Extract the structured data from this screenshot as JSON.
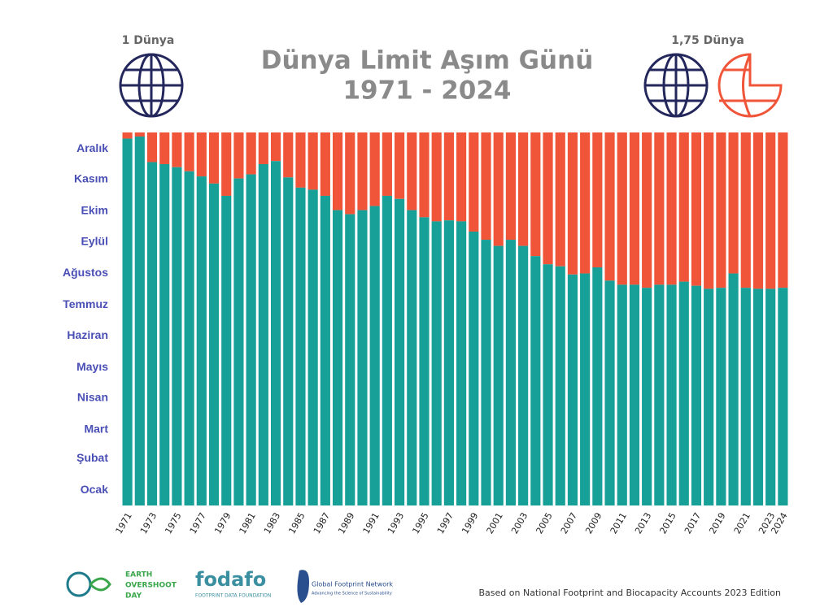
{
  "chart_data": {
    "type": "bar",
    "title": "Dünya Limit Aşım Günü",
    "subtitle": "1971 - 2024",
    "left_label": "1 Dünya",
    "right_label": "1,75 Dünya",
    "source": "Based on National Footprint and Biocapacity Accounts 2023 Edition",
    "logos": [
      "EARTH",
      "OVERSHOOT",
      "DAY",
      "fodafo",
      "FOOTPRINT DATA FOUNDATION",
      "Global Footprint Network",
      "Advancing the Science of Sustainability"
    ],
    "categories": [
      "1971",
      null,
      "1973",
      null,
      "1975",
      null,
      "1977",
      null,
      "1979",
      null,
      "1981",
      null,
      "1983",
      null,
      "1985",
      null,
      "1987",
      null,
      "1989",
      null,
      "1991",
      null,
      "1993",
      null,
      "1995",
      null,
      "1997",
      null,
      "1999",
      null,
      "2001",
      null,
      "2003",
      null,
      "2005",
      null,
      "2007",
      null,
      "2009",
      null,
      "2011",
      null,
      "2013",
      null,
      "2015",
      null,
      "2017",
      null,
      "2019",
      null,
      "2021",
      null,
      "2023",
      "2024"
    ],
    "values": [
      359,
      361,
      336,
      334,
      331,
      327,
      322,
      315,
      303,
      320,
      324,
      334,
      337,
      321,
      311,
      309,
      303,
      289,
      285,
      289,
      293,
      303,
      300,
      289,
      282,
      278,
      279,
      278,
      268,
      260,
      254,
      260,
      254,
      244,
      236,
      234,
      226,
      227,
      233,
      220,
      216,
      216,
      213,
      216,
      216,
      219,
      215,
      212,
      213,
      227,
      213,
      212,
      212,
      213
    ],
    "color": "#17a098",
    "background_color": "#f0553a",
    "ylim": [
      0,
      365
    ],
    "yticks": [
      {
        "value": 15,
        "label": "Ocak"
      },
      {
        "value": 46,
        "label": "Şubat"
      },
      {
        "value": 74,
        "label": "Mart"
      },
      {
        "value": 105,
        "label": "Nisan"
      },
      {
        "value": 135,
        "label": "Mayıs"
      },
      {
        "value": 166,
        "label": "Haziran"
      },
      {
        "value": 196,
        "label": "Temmuz"
      },
      {
        "value": 227,
        "label": "Ağustos"
      },
      {
        "value": 258,
        "label": "Eylül"
      },
      {
        "value": 288,
        "label": "Ekim"
      },
      {
        "value": 319,
        "label": "Kasım"
      },
      {
        "value": 349,
        "label": "Aralık"
      }
    ],
    "grid": false
  }
}
